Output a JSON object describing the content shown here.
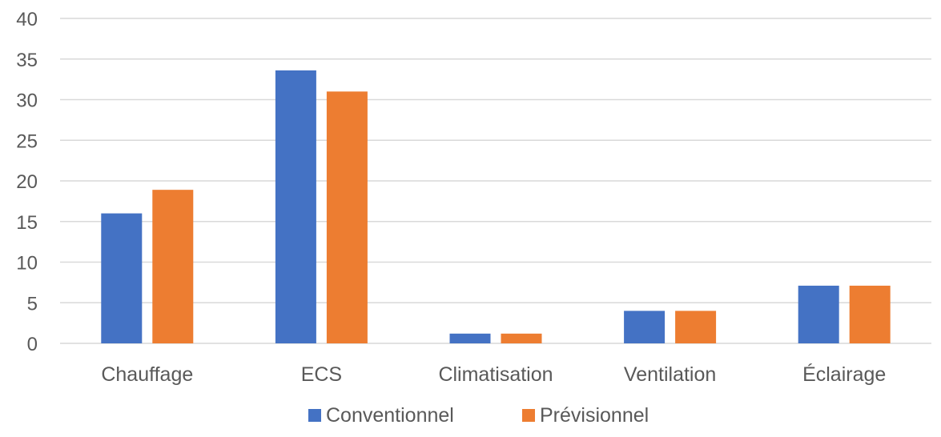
{
  "chart_data": {
    "type": "bar",
    "categories": [
      "Chauffage",
      "ECS",
      "Climatisation",
      "Ventilation",
      "Éclairage"
    ],
    "series": [
      {
        "name": "Conventionnel",
        "color": "#4472C4",
        "values": [
          16,
          33.6,
          1.2,
          4,
          7.1
        ]
      },
      {
        "name": "Prévisionnel",
        "color": "#ED7D31",
        "values": [
          18.9,
          31,
          1.2,
          4,
          7.1
        ]
      }
    ],
    "yticks": [
      "0",
      "5",
      "10",
      "15",
      "20",
      "25",
      "30",
      "35",
      "40"
    ],
    "ylim": [
      0,
      40
    ],
    "grid": true,
    "legend_position": "bottom",
    "gridline_color": "#D9D9D9",
    "text_color": "#595959"
  }
}
